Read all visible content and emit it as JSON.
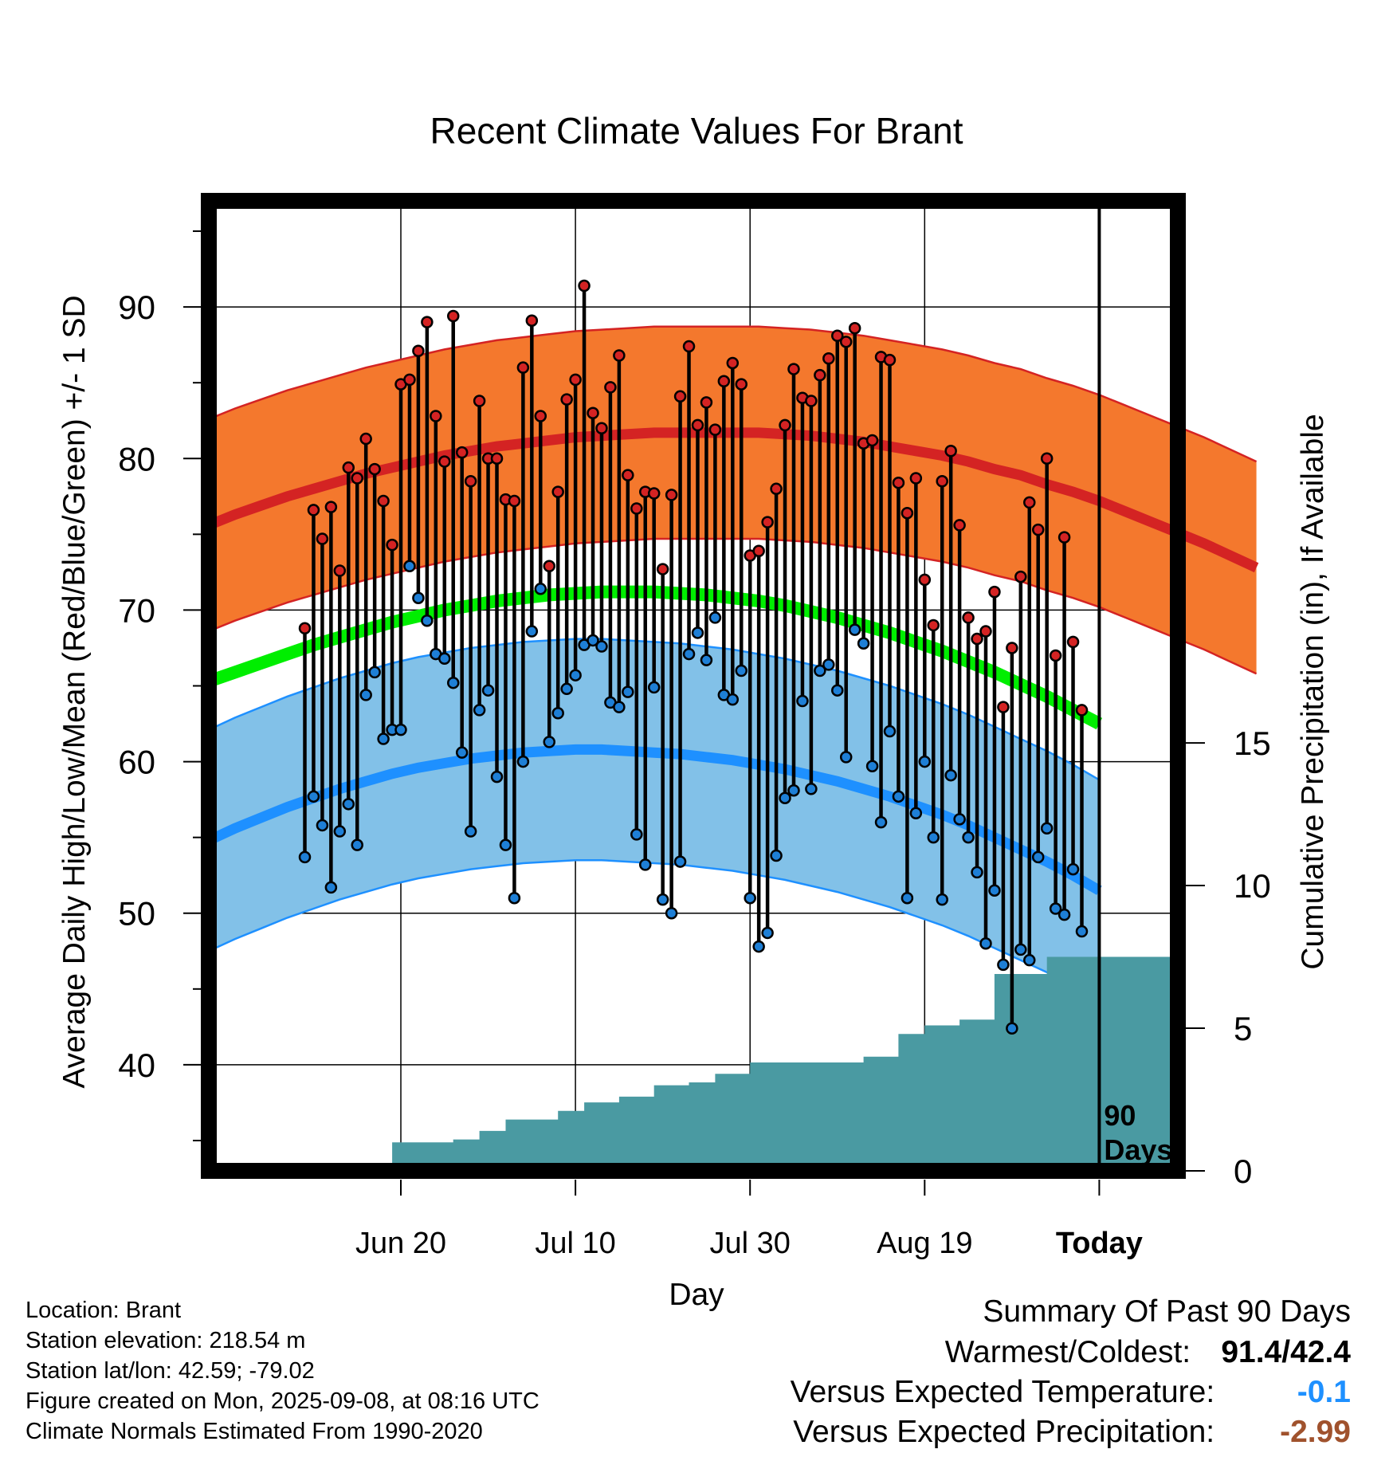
{
  "chart_data": {
    "type": "line",
    "title": "Recent Climate Values For Brant",
    "xlabel": "Day",
    "ylabel": "Average Daily High/Low/Mean (Red/Blue/Green) +/- 1 SD",
    "y2label": "Cumulative Precipitation (in), If Available",
    "xticks": [
      "Jun 20",
      "Jul 10",
      "Jul 30",
      "Aug 19",
      "Today"
    ],
    "yticks": [
      40,
      50,
      60,
      70,
      80,
      90
    ],
    "y2ticks": [
      0,
      5,
      10,
      15
    ],
    "ylim": [
      33,
      97
    ],
    "y2lim": [
      0,
      34
    ],
    "xlim": [
      -11,
      9
    ],
    "marker_label": "90 Days",
    "grid": true,
    "x": [
      "2025-06-09",
      "2025-06-10",
      "2025-06-11",
      "2025-06-12",
      "2025-06-13",
      "2025-06-14",
      "2025-06-15",
      "2025-06-16",
      "2025-06-17",
      "2025-06-18",
      "2025-06-19",
      "2025-06-20",
      "2025-06-21",
      "2025-06-22",
      "2025-06-23",
      "2025-06-24",
      "2025-06-25",
      "2025-06-26",
      "2025-06-27",
      "2025-06-28",
      "2025-06-29",
      "2025-06-30",
      "2025-07-01",
      "2025-07-02",
      "2025-07-03",
      "2025-07-04",
      "2025-07-05",
      "2025-07-06",
      "2025-07-07",
      "2025-07-08",
      "2025-07-09",
      "2025-07-10",
      "2025-07-11",
      "2025-07-12",
      "2025-07-13",
      "2025-07-14",
      "2025-07-15",
      "2025-07-16",
      "2025-07-17",
      "2025-07-18",
      "2025-07-19",
      "2025-07-20",
      "2025-07-21",
      "2025-07-22",
      "2025-07-23",
      "2025-07-24",
      "2025-07-25",
      "2025-07-26",
      "2025-07-27",
      "2025-07-28",
      "2025-07-29",
      "2025-07-30",
      "2025-07-31",
      "2025-08-01",
      "2025-08-02",
      "2025-08-03",
      "2025-08-04",
      "2025-08-05",
      "2025-08-06",
      "2025-08-07",
      "2025-08-08",
      "2025-08-09",
      "2025-08-10",
      "2025-08-11",
      "2025-08-12",
      "2025-08-13",
      "2025-08-14",
      "2025-08-15",
      "2025-08-16",
      "2025-08-17",
      "2025-08-18",
      "2025-08-19",
      "2025-08-20",
      "2025-08-21",
      "2025-08-22",
      "2025-08-23",
      "2025-08-24",
      "2025-08-25",
      "2025-08-26",
      "2025-08-27",
      "2025-08-28",
      "2025-08-29",
      "2025-08-30",
      "2025-08-31",
      "2025-09-01",
      "2025-09-02",
      "2025-09-03",
      "2025-09-04",
      "2025-09-05",
      "2025-09-06",
      "2025-09-07",
      "2025-09-08"
    ],
    "highs": [
      68.8,
      76.6,
      74.7,
      76.8,
      72.6,
      79.4,
      78.7,
      81.3,
      79.3,
      77.2,
      74.3,
      84.9,
      85.2,
      87.1,
      89.0,
      82.8,
      79.8,
      89.4,
      80.4,
      78.5,
      83.8,
      80.0,
      80.0,
      77.3,
      77.2,
      86.0,
      89.1,
      82.8,
      72.9,
      77.8,
      83.9,
      85.2,
      91.4,
      83.0,
      82.0,
      84.7,
      86.8,
      78.9,
      76.7,
      77.8,
      77.7,
      72.7,
      77.6,
      84.1,
      87.4,
      82.2,
      83.7,
      81.9,
      85.1,
      86.3,
      84.9,
      73.6,
      73.9,
      75.8,
      78.0,
      82.2,
      85.9,
      84.0,
      83.8,
      85.5,
      86.6,
      88.1,
      87.7,
      88.6,
      81.0,
      81.2,
      86.7,
      86.5,
      78.4,
      76.4,
      78.7,
      72.0,
      69.0,
      78.5,
      80.5,
      75.6,
      69.5,
      68.1,
      68.6,
      71.2,
      63.6,
      67.5,
      72.2,
      77.1,
      75.3,
      80.0,
      67.0,
      74.8,
      67.9,
      63.4
    ],
    "lows": [
      53.7,
      57.7,
      55.8,
      51.7,
      55.4,
      57.2,
      54.5,
      64.4,
      65.9,
      61.5,
      62.1,
      62.1,
      72.9,
      70.8,
      69.3,
      67.1,
      66.8,
      65.2,
      60.6,
      55.4,
      63.4,
      64.7,
      59.0,
      54.5,
      51.0,
      60.0,
      68.6,
      71.4,
      61.3,
      63.2,
      64.8,
      65.7,
      67.7,
      68.0,
      67.6,
      63.9,
      63.6,
      64.6,
      55.2,
      53.2,
      64.9,
      50.9,
      50.0,
      53.4,
      67.1,
      68.5,
      66.7,
      69.5,
      64.4,
      64.1,
      66.0,
      51.0,
      47.8,
      48.7,
      53.8,
      57.6,
      58.1,
      64.0,
      58.2,
      66.0,
      66.4,
      64.7,
      60.3,
      68.7,
      67.8,
      59.7,
      56.0,
      62.0,
      57.7,
      51.0,
      56.6,
      60.0,
      55.0,
      50.9,
      59.1,
      56.2,
      55.0,
      52.7,
      48.0,
      51.5,
      46.6,
      42.4,
      47.6,
      46.9,
      53.7,
      55.6,
      50.3,
      49.9,
      52.9,
      48.8
    ],
    "normal_high": [
      75.6,
      76.3,
      76.9,
      77.5,
      78.0,
      78.5,
      79.0,
      79.4,
      79.8,
      80.2,
      80.5,
      80.8,
      81.0,
      81.2,
      81.4,
      81.5,
      81.6,
      81.7,
      81.7,
      81.7,
      81.7,
      81.7,
      81.6,
      81.5,
      81.3,
      81.1,
      80.8,
      80.5,
      80.2,
      79.8,
      79.3,
      78.9,
      78.3,
      77.8,
      77.2,
      76.5,
      75.8,
      75.1,
      74.4,
      73.6,
      72.8
    ],
    "normal_high_sd": 7.0,
    "normal_low": [
      54.8,
      55.6,
      56.3,
      57.0,
      57.6,
      58.2,
      58.7,
      59.2,
      59.6,
      59.9,
      60.2,
      60.4,
      60.6,
      60.7,
      60.8,
      60.8,
      60.7,
      60.6,
      60.5,
      60.3,
      60.1,
      59.8,
      59.5,
      59.1,
      58.7,
      58.2,
      57.7,
      57.1,
      56.5,
      55.8,
      55.0,
      54.2,
      53.4,
      52.5,
      51.5
    ],
    "normal_low_sd": 7.3,
    "normal_mean": [
      65.3,
      65.9,
      66.5,
      67.1,
      67.7,
      68.2,
      68.7,
      69.2,
      69.6,
      70.0,
      70.3,
      70.6,
      70.8,
      71.0,
      71.1,
      71.2,
      71.2,
      71.2,
      71.1,
      71.0,
      70.8,
      70.6,
      70.3,
      69.9,
      69.5,
      69.0,
      68.5,
      67.9,
      67.3,
      66.6,
      65.9,
      65.1,
      64.3,
      63.4,
      62.5
    ],
    "normal_step_days": 3,
    "precip_cumulative": [
      0,
      0,
      0,
      0,
      0,
      0,
      0,
      0,
      0,
      0,
      1.0,
      1.0,
      1.0,
      1.0,
      1.0,
      1.0,
      1.0,
      1.1,
      1.1,
      1.1,
      1.4,
      1.4,
      1.4,
      1.8,
      1.8,
      1.8,
      1.8,
      1.8,
      1.8,
      2.1,
      2.1,
      2.1,
      2.4,
      2.4,
      2.4,
      2.4,
      2.6,
      2.6,
      2.6,
      2.6,
      3.0,
      3.0,
      3.0,
      3.0,
      3.1,
      3.1,
      3.1,
      3.4,
      3.4,
      3.4,
      3.4,
      3.8,
      3.8,
      3.8,
      3.8,
      3.8,
      3.8,
      3.8,
      3.8,
      3.8,
      3.8,
      3.8,
      3.8,
      3.8,
      4.0,
      4.0,
      4.0,
      4.0,
      4.8,
      4.8,
      4.8,
      5.1,
      5.1,
      5.1,
      5.1,
      5.3,
      5.3,
      5.3,
      5.3,
      6.9,
      6.9,
      6.9,
      6.9,
      6.9,
      6.9,
      7.5,
      7.5,
      7.5,
      7.5,
      7.5
    ]
  },
  "meta": {
    "location": "Location: Brant",
    "elevation": "Station elevation: 218.54 m",
    "latlon": "Station lat/lon: 42.59; -79.02",
    "created": "Figure created on Mon, 2025-09-08, at 08:16 UTC",
    "normals": "Climate Normals Estimated From 1990-2020"
  },
  "summary": {
    "title": "Summary Of Past 90 Days",
    "warm_cold_label": "Warmest/Coldest:",
    "warm_cold_value": "91.4/42.4",
    "temp_label": "Versus Expected Temperature:",
    "temp_value": "-0.1",
    "precip_label": "Versus Expected Precipitation:",
    "precip_value": "-2.99"
  },
  "colors": {
    "high_band": "#f4782d",
    "high_line": "#d42323",
    "low_band": "#82c1e8",
    "low_line": "#1e90ff",
    "mean_line": "#00ee00",
    "precip": "#4a9aa2",
    "high_marker": "#d42323",
    "low_marker": "#1e7fd6",
    "temp_value": "#1e90ff",
    "precip_value": "#a0522d"
  }
}
